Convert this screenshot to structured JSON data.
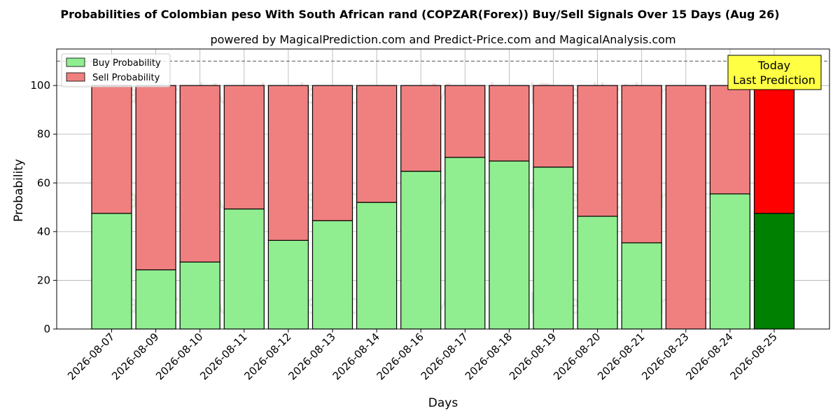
{
  "chart_data": {
    "type": "bar",
    "stacked": true,
    "title": "Probabilities of Colombian peso With South African rand (COPZAR(Forex)) Buy/Sell Signals Over 15 Days (Aug 26)",
    "subtitle": "powered by MagicalPrediction.com and Predict-Price.com and MagicalAnalysis.com",
    "xlabel": "Days",
    "ylabel": "Probability",
    "ylim": [
      0,
      115
    ],
    "yticks": [
      0,
      20,
      40,
      60,
      80,
      100
    ],
    "grid": true,
    "legend_position": "top-left",
    "reference_line": 110,
    "categories": [
      "2026-08-07",
      "2026-08-09",
      "2026-08-10",
      "2026-08-11",
      "2026-08-12",
      "2026-08-13",
      "2026-08-14",
      "2026-08-16",
      "2026-08-17",
      "2026-08-18",
      "2026-08-19",
      "2026-08-20",
      "2026-08-21",
      "2026-08-23",
      "2026-08-24",
      "2026-08-25"
    ],
    "series": [
      {
        "name": "Buy Probability",
        "color": "#90ee90",
        "values": [
          47.5,
          24.3,
          27.5,
          49.3,
          36.4,
          44.5,
          52.0,
          64.8,
          70.5,
          69.0,
          66.5,
          46.3,
          35.4,
          0,
          55.5,
          47.5
        ]
      },
      {
        "name": "Sell Probability",
        "color": "#f08080",
        "values": [
          52.5,
          75.7,
          72.5,
          50.7,
          63.6,
          55.5,
          48.0,
          35.2,
          29.5,
          31.0,
          33.5,
          53.7,
          64.6,
          100,
          44.5,
          52.5
        ]
      }
    ],
    "highlight": {
      "index": 15,
      "buy_color": "#008000",
      "sell_color": "#ff0000"
    },
    "annotation": {
      "line1": "Today",
      "line2": "Last Prediction",
      "color": "#ffff44"
    },
    "watermarks": [
      "MagicalAnalysis.com",
      "MagicalPrediction.com"
    ]
  }
}
